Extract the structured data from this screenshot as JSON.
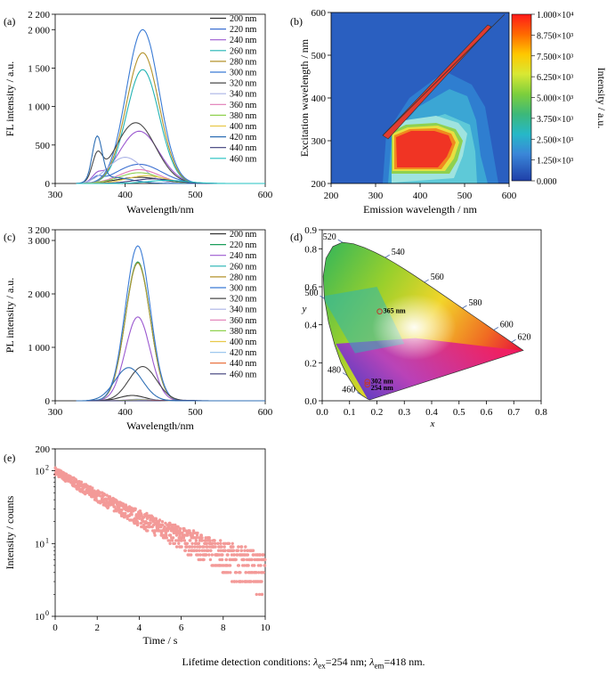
{
  "caption": {
    "prefix": "Lifetime detection conditions: ",
    "ex_sym": "λ",
    "ex_sub": "ex",
    "ex_val": "=254 nm; ",
    "em_sym": "λ",
    "em_sub": "em",
    "em_val": "=418 nm."
  },
  "chart_data": [
    {
      "panel": "(a)",
      "type": "line",
      "xlabel": "Wavelength/nm",
      "ylabel": "FL intensity / a.u.",
      "xlim": [
        300,
        600
      ],
      "ylim": [
        0,
        2200
      ],
      "xticks": [
        300,
        400,
        500,
        600
      ],
      "yticks": [
        0,
        500,
        1000,
        1500,
        2000,
        2200
      ],
      "ytick_labels": [
        "0",
        "500",
        "1 000",
        "1 500",
        "2 000",
        "2 200"
      ],
      "legend_position": "top-right",
      "series": [
        {
          "name": "200 nm",
          "color": "#333333",
          "peak_x": 420,
          "peak_y": 80,
          "width": 45,
          "shoulder": 0
        },
        {
          "name": "220 nm",
          "color": "#3b6fd1",
          "peak_x": 420,
          "peak_y": 250,
          "width": 45,
          "shoulder": 60
        },
        {
          "name": "240 nm",
          "color": "#9b59d0",
          "peak_x": 420,
          "peak_y": 680,
          "width": 40,
          "shoulder": 80
        },
        {
          "name": "260 nm",
          "color": "#22b3b3",
          "peak_x": 425,
          "peak_y": 1480,
          "width": 33,
          "shoulder": 0
        },
        {
          "name": "280 nm",
          "color": "#b3922b",
          "peak_x": 425,
          "peak_y": 1700,
          "width": 33,
          "shoulder": 0
        },
        {
          "name": "300 nm",
          "color": "#3a7bd5",
          "peak_x": 425,
          "peak_y": 2000,
          "width": 33,
          "shoulder": 0
        },
        {
          "name": "320 nm",
          "color": "#4a4a4a",
          "peak_x": 415,
          "peak_y": 790,
          "width": 40,
          "shoulder": 300
        },
        {
          "name": "340 nm",
          "color": "#aab3e6",
          "peak_x": 400,
          "peak_y": 340,
          "width": 35,
          "shoulder": 0
        },
        {
          "name": "360 nm",
          "color": "#e07ab5",
          "peak_x": 420,
          "peak_y": 180,
          "width": 40,
          "shoulder": 0
        },
        {
          "name": "380 nm",
          "color": "#8fd14f",
          "peak_x": 420,
          "peak_y": 140,
          "width": 40,
          "shoulder": 0
        },
        {
          "name": "400 nm",
          "color": "#e8c84a",
          "peak_x": 430,
          "peak_y": 100,
          "width": 40,
          "shoulder": 0
        },
        {
          "name": "420 nm",
          "color": "#2f6fb5",
          "peak_x": 380,
          "peak_y": 80,
          "width": 40,
          "shoulder": 560
        },
        {
          "name": "440 nm",
          "color": "#3c3c78",
          "peak_x": 440,
          "peak_y": 60,
          "width": 40,
          "shoulder": 0
        },
        {
          "name": "460 nm",
          "color": "#23c0c0",
          "peak_x": 460,
          "peak_y": 40,
          "width": 40,
          "shoulder": 0
        }
      ]
    },
    {
      "panel": "(b)",
      "type": "heatmap",
      "xlabel": "Emission wavelength / nm",
      "ylabel": "Excitation wavelength / nm",
      "colorbar_label": "Intensity / a.u.",
      "xlim": [
        200,
        600
      ],
      "ylim": [
        200,
        600
      ],
      "xticks": [
        200,
        300,
        400,
        500,
        600
      ],
      "yticks": [
        200,
        300,
        400,
        500,
        600
      ],
      "colorbar_ticks": [
        "1.000×10⁴",
        "8.750×10³",
        "7.500×10³",
        "6.250×10³",
        "5.000×10³",
        "3.750×10³",
        "2.500×10³",
        "1.250×10³",
        "0.000"
      ],
      "colorbar_colors": [
        "#ff1a1a",
        "#ff6a00",
        "#ffc800",
        "#d8e834",
        "#7ccf3c",
        "#3cb87a",
        "#26b8c8",
        "#3a86d8",
        "#2a56c6",
        "#1f3fa8"
      ],
      "hotspot": {
        "emission": 420,
        "excitation": 275,
        "value": 10000
      }
    },
    {
      "panel": "(c)",
      "type": "line",
      "xlabel": "Wavelength/nm",
      "ylabel": "PL intensity / a.u.",
      "xlim": [
        300,
        600
      ],
      "ylim": [
        0,
        3200
      ],
      "xticks": [
        300,
        400,
        500,
        600
      ],
      "yticks": [
        0,
        1000,
        2000,
        3000,
        3200
      ],
      "ytick_labels": [
        "0",
        "1 000",
        "2 000",
        "3 000",
        "3 200"
      ],
      "legend_position": "top-right",
      "series": [
        {
          "name": "200 nm",
          "color": "#333333",
          "peak_x": 410,
          "peak_y": 100,
          "width": 25,
          "shoulder": 0
        },
        {
          "name": "220 nm",
          "color": "#1b9e5a",
          "peak_x": 418,
          "peak_y": 2600,
          "width": 25,
          "shoulder": 0
        },
        {
          "name": "240 nm",
          "color": "#9b59d0",
          "peak_x": 418,
          "peak_y": 1570,
          "width": 25,
          "shoulder": 0
        },
        {
          "name": "260 nm",
          "color": "#22b3b3",
          "peak_x": 418,
          "peak_y": 2580,
          "width": 25,
          "shoulder": 0
        },
        {
          "name": "280 nm",
          "color": "#b3922b",
          "peak_x": 418,
          "peak_y": 2580,
          "width": 25,
          "shoulder": 0
        },
        {
          "name": "300 nm",
          "color": "#3a7bd5",
          "peak_x": 418,
          "peak_y": 2900,
          "width": 25,
          "shoulder": 0
        },
        {
          "name": "320 nm",
          "color": "#4a4a4a",
          "peak_x": 425,
          "peak_y": 640,
          "width": 28,
          "shoulder": 0
        },
        {
          "name": "340 nm",
          "color": "#aab3e6",
          "peak_x": 420,
          "peak_y": 30,
          "width": 25,
          "shoulder": 0
        },
        {
          "name": "360 nm",
          "color": "#e07ab5",
          "peak_x": 420,
          "peak_y": 20,
          "width": 25,
          "shoulder": 0
        },
        {
          "name": "380 nm",
          "color": "#8fd14f",
          "peak_x": 420,
          "peak_y": 15,
          "width": 25,
          "shoulder": 0
        },
        {
          "name": "400 nm",
          "color": "#e8c84a",
          "peak_x": 430,
          "peak_y": 10,
          "width": 25,
          "shoulder": 0
        },
        {
          "name": "420 nm",
          "color": "#9ec8ee",
          "peak_x": 440,
          "peak_y": 10,
          "width": 25,
          "shoulder": 0
        },
        {
          "name": "440 nm",
          "color": "#e8622a",
          "peak_x": 460,
          "peak_y": 10,
          "width": 25,
          "shoulder": 0
        },
        {
          "name": "460 nm",
          "color": "#3c3c78",
          "peak_x": 480,
          "peak_y": 10,
          "width": 25,
          "shoulder": 0
        }
      ],
      "extra_series": {
        "color": "#2f6fb5",
        "peak_x": 405,
        "peak_y": 620,
        "width": 28
      }
    },
    {
      "panel": "(d)",
      "type": "scatter",
      "xlabel": "x",
      "ylabel": "y",
      "xlim": [
        0,
        0.8
      ],
      "ylim": [
        0,
        0.9
      ],
      "xticks": [
        "0.0",
        "0.1",
        "0.2",
        "0.3",
        "0.4",
        "0.5",
        "0.6",
        "0.7",
        "0.8"
      ],
      "yticks": [
        "0.0",
        "0.2",
        "0.4",
        "0.6",
        "0.8",
        "0.9"
      ],
      "wavelength_labels": [
        {
          "label": "460",
          "x": 0.144,
          "y": 0.03
        },
        {
          "label": "480",
          "x": 0.091,
          "y": 0.133
        },
        {
          "label": "500",
          "x": 0.008,
          "y": 0.538
        },
        {
          "label": "520",
          "x": 0.074,
          "y": 0.834
        },
        {
          "label": "540",
          "x": 0.23,
          "y": 0.754
        },
        {
          "label": "560",
          "x": 0.373,
          "y": 0.624
        },
        {
          "label": "580",
          "x": 0.512,
          "y": 0.487
        },
        {
          "label": "600",
          "x": 0.627,
          "y": 0.373
        },
        {
          "label": "620",
          "x": 0.691,
          "y": 0.308
        }
      ],
      "points": [
        {
          "label": "365 nm",
          "x": 0.21,
          "y": 0.47
        },
        {
          "label": "302 nm",
          "x": 0.165,
          "y": 0.1
        },
        {
          "label": "254 nm",
          "x": 0.165,
          "y": 0.085
        }
      ]
    },
    {
      "panel": "(e)",
      "type": "scatter",
      "xlabel": "Time / s",
      "ylabel": "Intensity / counts",
      "xlim": [
        0,
        10
      ],
      "ylim": [
        1,
        200
      ],
      "yscale": "log",
      "xticks": [
        0,
        2,
        4,
        6,
        8,
        10
      ],
      "yticks": [
        {
          "value": 1,
          "base": "10",
          "exp": "0"
        },
        {
          "value": 10,
          "base": "10",
          "exp": "1"
        },
        {
          "value": 100,
          "base": "10",
          "exp": "2"
        },
        {
          "value": 200,
          "label": "200"
        }
      ],
      "color": "#f39a98",
      "decay": {
        "initial": 100,
        "tau_fast": 2.0,
        "tau_slow": 5.0,
        "fast_fraction": 0.7
      }
    }
  ]
}
